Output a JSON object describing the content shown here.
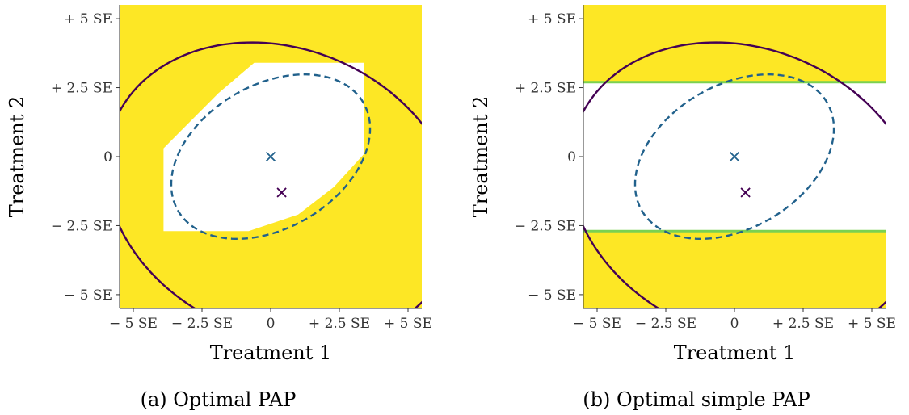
{
  "colors": {
    "rejection": "#fde725",
    "acceptance": "#ffffff",
    "solid_ellipse": "#440154",
    "dashed_ellipse": "#21618c",
    "boundary": "#7ad151",
    "axis": "#333333"
  },
  "chart_data": [
    {
      "type": "contour",
      "caption": "(a) Optimal PAP",
      "xlabel": "Treatment 1",
      "ylabel": "Treatment 2",
      "xlim": [
        -5.5,
        5.5
      ],
      "ylim": [
        -5.5,
        5.5
      ],
      "units": "SE",
      "x_ticks": [
        {
          "value": -5,
          "label": "− 5 SE"
        },
        {
          "value": -2.5,
          "label": "− 2.5 SE"
        },
        {
          "value": 0,
          "label": "0"
        },
        {
          "value": 2.5,
          "label": "+ 2.5 SE"
        },
        {
          "value": 5,
          "label": "+ 5 SE"
        }
      ],
      "y_ticks": [
        {
          "value": 5,
          "label": "+ 5 SE"
        },
        {
          "value": 2.5,
          "label": "+ 2.5 SE"
        },
        {
          "value": 0,
          "label": "0"
        },
        {
          "value": -2.5,
          "label": "− 2.5 SE"
        },
        {
          "value": -5,
          "label": "− 5 SE"
        }
      ],
      "background_region": "rejection",
      "acceptance_region": [
        [
          -3.9,
          0.3
        ],
        [
          -3.9,
          -2.7
        ],
        [
          -0.8,
          -2.7
        ],
        [
          1.0,
          -2.1
        ],
        [
          2.3,
          -1.1
        ],
        [
          3.4,
          0.1
        ],
        [
          3.4,
          3.4
        ],
        [
          -0.6,
          3.4
        ],
        [
          -1.9,
          2.3
        ],
        [
          -3.2,
          1.0
        ]
      ],
      "boundary_lines": [],
      "solid_ellipse": {
        "center": [
          0.4,
          -1.3
        ],
        "semi_axes": [
          5.2,
          6.6
        ],
        "angle_deg": 67
      },
      "dashed_ellipse": {
        "center": [
          0.0,
          0.0
        ],
        "semi_axes": [
          3.9,
          2.6
        ],
        "angle_deg": 30
      },
      "markers": [
        {
          "name": "center-a",
          "x": 0.0,
          "y": 0.0,
          "color": "dashed_ellipse"
        },
        {
          "name": "center-b",
          "x": 0.4,
          "y": -1.3,
          "color": "solid_ellipse"
        }
      ]
    },
    {
      "type": "contour",
      "caption": "(b) Optimal simple PAP",
      "xlabel": "Treatment 1",
      "ylabel": "Treatment 2",
      "xlim": [
        -5.5,
        5.5
      ],
      "ylim": [
        -5.5,
        5.5
      ],
      "units": "SE",
      "x_ticks": [
        {
          "value": -5,
          "label": "− 5 SE"
        },
        {
          "value": -2.5,
          "label": "− 2.5 SE"
        },
        {
          "value": 0,
          "label": "0"
        },
        {
          "value": 2.5,
          "label": "+ 2.5 SE"
        },
        {
          "value": 5,
          "label": "+ 5 SE"
        }
      ],
      "y_ticks": [
        {
          "value": 5,
          "label": "+ 5 SE"
        },
        {
          "value": 2.5,
          "label": "+ 2.5 SE"
        },
        {
          "value": 0,
          "label": "0"
        },
        {
          "value": -2.5,
          "label": "− 2.5 SE"
        },
        {
          "value": -5,
          "label": "− 5 SE"
        }
      ],
      "background_region": "rejection",
      "acceptance_region": [
        [
          -5.5,
          -2.7
        ],
        [
          5.5,
          -2.7
        ],
        [
          5.5,
          2.7
        ],
        [
          -5.5,
          2.7
        ]
      ],
      "boundary_lines": [
        2.7,
        -2.7
      ],
      "solid_ellipse": {
        "center": [
          0.4,
          -1.3
        ],
        "semi_axes": [
          5.2,
          6.6
        ],
        "angle_deg": 67
      },
      "dashed_ellipse": {
        "center": [
          0.0,
          0.0
        ],
        "semi_axes": [
          3.9,
          2.6
        ],
        "angle_deg": 30
      },
      "markers": [
        {
          "name": "center-a",
          "x": 0.0,
          "y": 0.0,
          "color": "dashed_ellipse"
        },
        {
          "name": "center-b",
          "x": 0.4,
          "y": -1.3,
          "color": "solid_ellipse"
        }
      ]
    }
  ]
}
